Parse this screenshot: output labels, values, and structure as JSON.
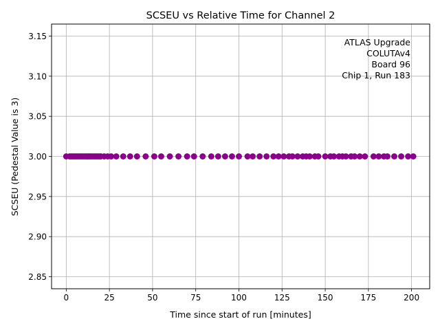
{
  "chart_data": {
    "type": "scatter",
    "title": "SCSEU vs Relative Time for Channel 2",
    "xlabel": "Time since start of run [minutes]",
    "ylabel": "SCSEU (Pedestal Value is 3)",
    "xlim": [
      -8.5,
      210.5
    ],
    "ylim": [
      2.835,
      3.165
    ],
    "xticks": [
      0,
      25,
      50,
      75,
      100,
      125,
      150,
      175,
      200
    ],
    "xtick_labels": [
      "0",
      "25",
      "50",
      "75",
      "100",
      "125",
      "150",
      "175",
      "200"
    ],
    "yticks": [
      2.85,
      2.9,
      2.95,
      3.0,
      3.05,
      3.1,
      3.15
    ],
    "ytick_labels": [
      "2.85",
      "2.90",
      "2.95",
      "3.00",
      "3.05",
      "3.10",
      "3.15"
    ],
    "grid": true,
    "marker_color": "#8b008b",
    "annotation": [
      "ATLAS Upgrade",
      "COLUTAv4",
      "Board 96",
      "Chip 1, Run 183"
    ],
    "annotation_position": "top-right",
    "series": [
      {
        "x": [
          0,
          2,
          3,
          4,
          5,
          6,
          7,
          8,
          9,
          10,
          11,
          12,
          13,
          14,
          15,
          16,
          17,
          18,
          19,
          20,
          22,
          24,
          26,
          29,
          33,
          37,
          41,
          46,
          51,
          55,
          60,
          65,
          70,
          74,
          79,
          84,
          88,
          92,
          96,
          100,
          105,
          108,
          112,
          116,
          120,
          123,
          126,
          129,
          131,
          134,
          137,
          139,
          141,
          144,
          146,
          150,
          153,
          155,
          158,
          160,
          162,
          165,
          167,
          170,
          173,
          178,
          181,
          184,
          186,
          190,
          194,
          198,
          201
        ],
        "y": [
          3,
          3,
          3,
          3,
          3,
          3,
          3,
          3,
          3,
          3,
          3,
          3,
          3,
          3,
          3,
          3,
          3,
          3,
          3,
          3,
          3,
          3,
          3,
          3,
          3,
          3,
          3,
          3,
          3,
          3,
          3,
          3,
          3,
          3,
          3,
          3,
          3,
          3,
          3,
          3,
          3,
          3,
          3,
          3,
          3,
          3,
          3,
          3,
          3,
          3,
          3,
          3,
          3,
          3,
          3,
          3,
          3,
          3,
          3,
          3,
          3,
          3,
          3,
          3,
          3,
          3,
          3,
          3,
          3,
          3,
          3,
          3,
          3
        ]
      }
    ]
  }
}
